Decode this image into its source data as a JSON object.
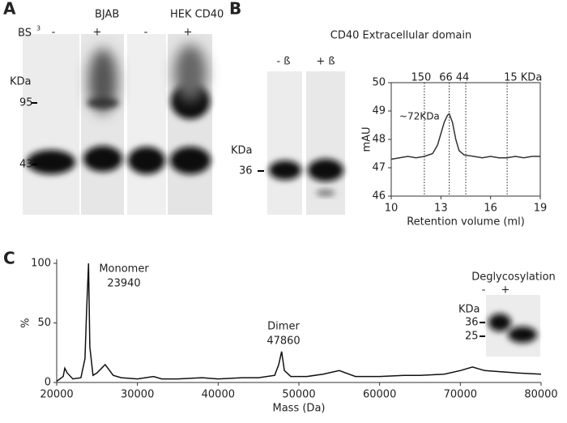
{
  "panels": {
    "a": {
      "letter": "A",
      "groups": [
        "BJAB",
        "HEK CD40"
      ],
      "reagent": "BS",
      "reagent_sup": "3",
      "lanes": [
        "-",
        "+",
        "-",
        "+"
      ],
      "unit": "KDa",
      "markers": [
        "95",
        "43"
      ]
    },
    "b": {
      "letter": "B",
      "title": "CD40 Extracellular domain",
      "lanes": [
        "- ß",
        "+ ß"
      ],
      "unit": "KDa",
      "markers": [
        "36"
      ]
    },
    "c": {
      "letter": "C",
      "inset_title": "Deglycosylation",
      "lanes": [
        "-",
        "+"
      ],
      "unit": "KDa",
      "markers": [
        "36",
        "25"
      ]
    }
  },
  "chart_data": [
    {
      "type": "line",
      "x_label": "Retention volume (ml)",
      "y_label": "mAU",
      "annotation": "~72KDa",
      "xlim": [
        10,
        19
      ],
      "xticks": [
        10,
        13,
        16,
        19
      ],
      "ylim": [
        46,
        50
      ],
      "yticks": [
        46,
        47,
        48,
        49,
        50
      ],
      "color": "#333333",
      "markers": [
        {
          "label": "150",
          "x": 12
        },
        {
          "label": "66",
          "x": 13.5
        },
        {
          "label": "44",
          "x": 14.5
        },
        {
          "label": "15 KDa",
          "x": 17
        }
      ],
      "x": [
        10,
        10.5,
        11,
        11.5,
        12,
        12.5,
        12.8,
        13,
        13.2,
        13.4,
        13.5,
        13.7,
        13.9,
        14.1,
        14.4,
        15,
        15.5,
        16,
        16.5,
        17,
        17.5,
        18,
        18.5,
        19
      ],
      "values": [
        47.3,
        47.35,
        47.4,
        47.35,
        47.4,
        47.5,
        47.8,
        48.2,
        48.6,
        48.85,
        48.9,
        48.6,
        48.0,
        47.6,
        47.45,
        47.4,
        47.35,
        47.4,
        47.35,
        47.35,
        47.4,
        47.35,
        47.4,
        47.4
      ]
    },
    {
      "type": "line",
      "x_label": "Mass (Da)",
      "y_label": "%",
      "annotations": [
        "Monomer",
        "23940",
        "Dimer",
        "47860"
      ],
      "xlim": [
        20000,
        80000
      ],
      "xticks": [
        20000,
        30000,
        40000,
        50000,
        60000,
        70000,
        80000
      ],
      "ylim": [
        0,
        100
      ],
      "yticks": [
        0,
        50,
        100
      ],
      "color": "#111111",
      "x": [
        20000,
        20800,
        21000,
        21300,
        22000,
        23000,
        23500,
        23700,
        23940,
        24100,
        24500,
        25000,
        26000,
        27000,
        28000,
        30000,
        32000,
        33000,
        35000,
        38000,
        40000,
        43000,
        45000,
        47000,
        47500,
        47860,
        48200,
        49000,
        51000,
        53000,
        55000,
        57000,
        60000,
        63000,
        65000,
        68000,
        70000,
        71500,
        73000,
        75000,
        77000,
        80000
      ],
      "values": [
        1,
        5,
        12,
        8,
        3,
        4,
        20,
        60,
        100,
        30,
        6,
        8,
        15,
        6,
        4,
        3,
        5,
        3,
        3,
        4,
        3,
        4,
        4,
        6,
        15,
        26,
        10,
        5,
        5,
        7,
        10,
        5,
        5,
        6,
        6,
        7,
        10,
        13,
        10,
        9,
        8,
        7
      ]
    }
  ]
}
